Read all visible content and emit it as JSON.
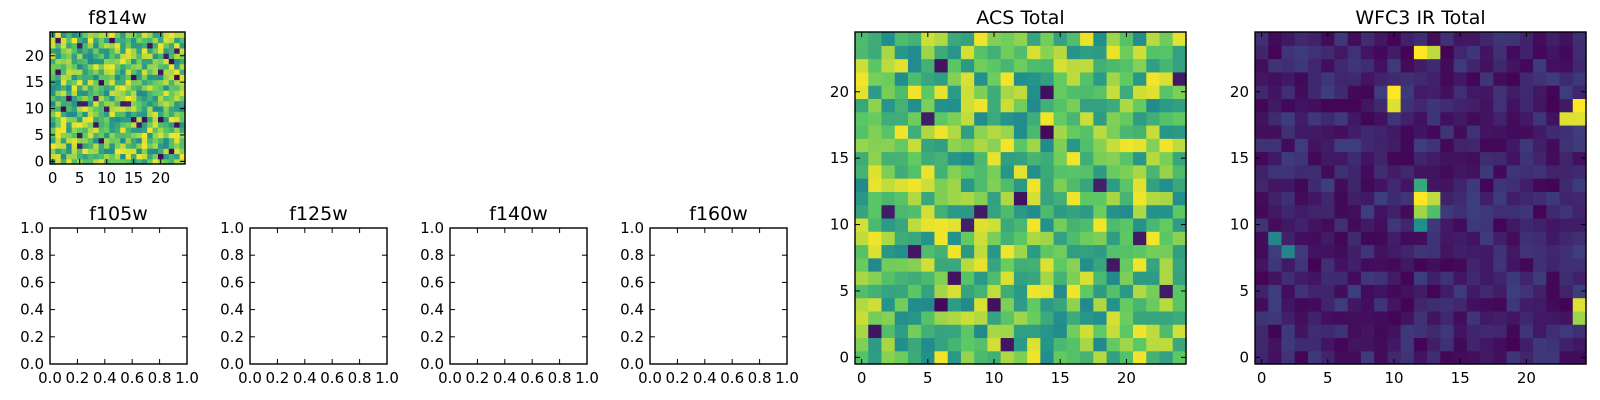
{
  "colors": {
    "background": "#ffffff",
    "axis": "#000000",
    "colormap": "viridis",
    "viridis_stops": [
      "#440154",
      "#3b528b",
      "#21908d",
      "#5dc963",
      "#fde725"
    ]
  },
  "chart_data": [
    {
      "type": "heatmap",
      "title": "f814w",
      "grid_size": 25,
      "xlim": [
        -0.5,
        24.5
      ],
      "ylim": [
        -0.5,
        24.5
      ],
      "xticks": [
        0,
        5,
        10,
        15,
        20
      ],
      "yticks": [
        0,
        5,
        10,
        15,
        20
      ],
      "value_range": [
        0,
        1
      ],
      "mean_level": 0.72,
      "grid": false
    },
    {
      "type": "table",
      "title": "f105w",
      "xlim": [
        0,
        1
      ],
      "ylim": [
        0,
        1
      ],
      "xticks": [
        "0.0",
        "0.2",
        "0.4",
        "0.6",
        "0.8",
        "1.0"
      ],
      "yticks": [
        "0.0",
        "0.2",
        "0.4",
        "0.6",
        "0.8",
        "1.0"
      ]
    },
    {
      "type": "table",
      "title": "f125w",
      "xlim": [
        0,
        1
      ],
      "ylim": [
        0,
        1
      ],
      "xticks": [
        "0.0",
        "0.2",
        "0.4",
        "0.6",
        "0.8",
        "1.0"
      ],
      "yticks": [
        "0.0",
        "0.2",
        "0.4",
        "0.6",
        "0.8",
        "1.0"
      ]
    },
    {
      "type": "table",
      "title": "f140w",
      "xlim": [
        0,
        1
      ],
      "ylim": [
        0,
        1
      ],
      "xticks": [
        "0.0",
        "0.2",
        "0.4",
        "0.6",
        "0.8",
        "1.0"
      ],
      "yticks": [
        "0.0",
        "0.2",
        "0.4",
        "0.6",
        "0.8",
        "1.0"
      ]
    },
    {
      "type": "table",
      "title": "f160w",
      "xlim": [
        0,
        1
      ],
      "ylim": [
        0,
        1
      ],
      "xticks": [
        "0.0",
        "0.2",
        "0.4",
        "0.6",
        "0.8",
        "1.0"
      ],
      "yticks": [
        "0.0",
        "0.2",
        "0.4",
        "0.6",
        "0.8",
        "1.0"
      ]
    },
    {
      "type": "heatmap",
      "title": "ACS Total",
      "grid_size": 25,
      "xlim": [
        -0.5,
        24.5
      ],
      "ylim": [
        -0.5,
        24.5
      ],
      "xticks": [
        0,
        5,
        10,
        15,
        20
      ],
      "yticks": [
        0,
        5,
        10,
        15,
        20
      ],
      "value_range": [
        0,
        1
      ],
      "mean_level": 0.72,
      "grid": false
    },
    {
      "type": "heatmap",
      "title": "WFC3 IR Total",
      "grid_size": 25,
      "xlim": [
        -0.5,
        24.5
      ],
      "ylim": [
        -0.5,
        24.5
      ],
      "xticks": [
        0,
        5,
        10,
        15,
        20
      ],
      "yticks": [
        0,
        5,
        10,
        15,
        20
      ],
      "value_range": [
        0,
        1
      ],
      "mean_level": 0.1,
      "grid": false,
      "bright_cells": [
        {
          "x": 12,
          "y": 23,
          "value": 1.0
        },
        {
          "x": 13,
          "y": 23,
          "value": 0.9
        },
        {
          "x": 10,
          "y": 20,
          "value": 1.0
        },
        {
          "x": 10,
          "y": 19,
          "value": 0.95
        },
        {
          "x": 24,
          "y": 19,
          "value": 1.0
        },
        {
          "x": 23,
          "y": 18,
          "value": 0.95
        },
        {
          "x": 24,
          "y": 18,
          "value": 0.95
        },
        {
          "x": 12,
          "y": 13,
          "value": 0.6
        },
        {
          "x": 12,
          "y": 12,
          "value": 1.0
        },
        {
          "x": 13,
          "y": 12,
          "value": 0.9
        },
        {
          "x": 12,
          "y": 11,
          "value": 0.85
        },
        {
          "x": 13,
          "y": 11,
          "value": 0.7
        },
        {
          "x": 12,
          "y": 10,
          "value": 0.5
        },
        {
          "x": 24,
          "y": 4,
          "value": 0.95
        },
        {
          "x": 24,
          "y": 3,
          "value": 0.85
        },
        {
          "x": 1,
          "y": 9,
          "value": 0.45
        },
        {
          "x": 2,
          "y": 8,
          "value": 0.45
        }
      ]
    }
  ]
}
